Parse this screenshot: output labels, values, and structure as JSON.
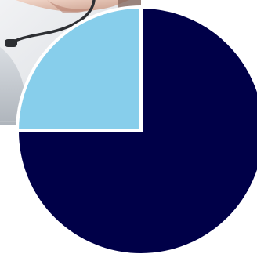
{
  "chart_data": {
    "type": "pie",
    "slices": [
      {
        "value": 75,
        "color": "#000048"
      },
      {
        "value": 25,
        "color": "#87ceeb"
      }
    ],
    "start_angle_deg": 0,
    "direction": "clockwise",
    "slice_border_color": "#ffffff",
    "title": "",
    "legend": "none"
  },
  "background_photo": {
    "icon": "headset-person-photo",
    "colors": {
      "skin": "#e9c8b8",
      "shadow": "#c59a88",
      "background": "#e3e6ea",
      "headset": "#2d2f33"
    }
  }
}
